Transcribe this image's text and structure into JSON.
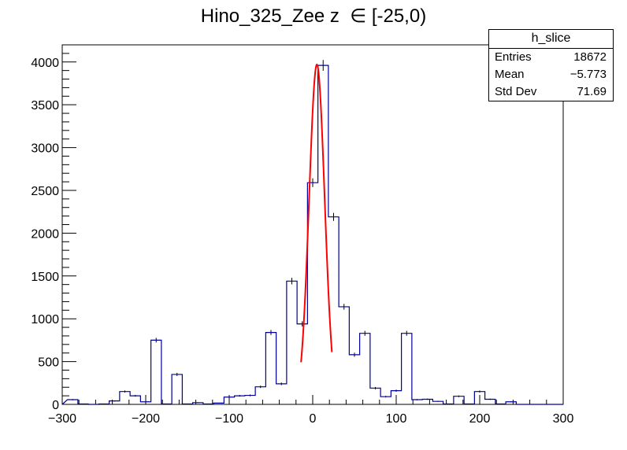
{
  "title": "Hino_325_Zee z  ∈ [-25,0)",
  "stats_box": {
    "name": "h_slice",
    "rows": [
      {
        "label": "Entries",
        "value": "18672"
      },
      {
        "label": "Mean",
        "value": "−5.773"
      },
      {
        "label": "Std Dev",
        "value": "71.69"
      }
    ]
  },
  "chart_data": {
    "type": "histogram",
    "xlim": [
      -300,
      300
    ],
    "ylim": [
      0,
      4200
    ],
    "bin_width": 12.5,
    "x_ticks": [
      -300,
      -200,
      -100,
      0,
      100,
      200,
      300
    ],
    "x_tick_labels": [
      "−300",
      "−200",
      "−100",
      "0",
      "100",
      "200",
      "300"
    ],
    "y_ticks": [
      0,
      500,
      1000,
      1500,
      2000,
      2500,
      3000,
      3500,
      4000
    ],
    "y_tick_labels": [
      "0",
      "500",
      "1000",
      "1500",
      "2000",
      "2500",
      "3000",
      "3500",
      "4000"
    ],
    "bins": [
      {
        "x": -287.5,
        "y": 55
      },
      {
        "x": -275,
        "y": 5
      },
      {
        "x": -262.5,
        "y": 0
      },
      {
        "x": -250,
        "y": 5
      },
      {
        "x": -237.5,
        "y": 40
      },
      {
        "x": -225,
        "y": 150
      },
      {
        "x": -212.5,
        "y": 100
      },
      {
        "x": -200,
        "y": 30
      },
      {
        "x": -187.5,
        "y": 750
      },
      {
        "x": -175,
        "y": 5
      },
      {
        "x": -162.5,
        "y": 350
      },
      {
        "x": -150,
        "y": 5
      },
      {
        "x": -137.5,
        "y": 20
      },
      {
        "x": -125,
        "y": 5
      },
      {
        "x": -112.5,
        "y": 15
      },
      {
        "x": -100,
        "y": 85
      },
      {
        "x": -87.5,
        "y": 100
      },
      {
        "x": -75,
        "y": 105
      },
      {
        "x": -62.5,
        "y": 205
      },
      {
        "x": -50,
        "y": 840
      },
      {
        "x": -37.5,
        "y": 240
      },
      {
        "x": -25,
        "y": 1440
      },
      {
        "x": -12.5,
        "y": 940
      },
      {
        "x": 0,
        "y": 2590
      },
      {
        "x": 12.5,
        "y": 3960
      },
      {
        "x": 25,
        "y": 2190
      },
      {
        "x": 37.5,
        "y": 1140
      },
      {
        "x": 50,
        "y": 580
      },
      {
        "x": 62.5,
        "y": 830
      },
      {
        "x": 75,
        "y": 190
      },
      {
        "x": 87.5,
        "y": 90
      },
      {
        "x": 100,
        "y": 160
      },
      {
        "x": 112.5,
        "y": 830
      },
      {
        "x": 125,
        "y": 55
      },
      {
        "x": 137.5,
        "y": 60
      },
      {
        "x": 150,
        "y": 35
      },
      {
        "x": 162.5,
        "y": 5
      },
      {
        "x": 175,
        "y": 95
      },
      {
        "x": 187.5,
        "y": 5
      },
      {
        "x": 200,
        "y": 150
      },
      {
        "x": 212.5,
        "y": 60
      },
      {
        "x": 225,
        "y": 5
      },
      {
        "x": 237.5,
        "y": 30
      },
      {
        "x": 250,
        "y": 0
      },
      {
        "x": 262.5,
        "y": 0
      },
      {
        "x": 275,
        "y": 0
      },
      {
        "x": 287.5,
        "y": 0
      }
    ],
    "fit": {
      "type": "gaussian",
      "amplitude": 3970,
      "mean": 5,
      "sigma": 9.3,
      "x_range": [
        -14,
        23
      ],
      "color": "#ff0000"
    },
    "histogram_color": "#000099",
    "grid": false,
    "legend": "top-right"
  }
}
